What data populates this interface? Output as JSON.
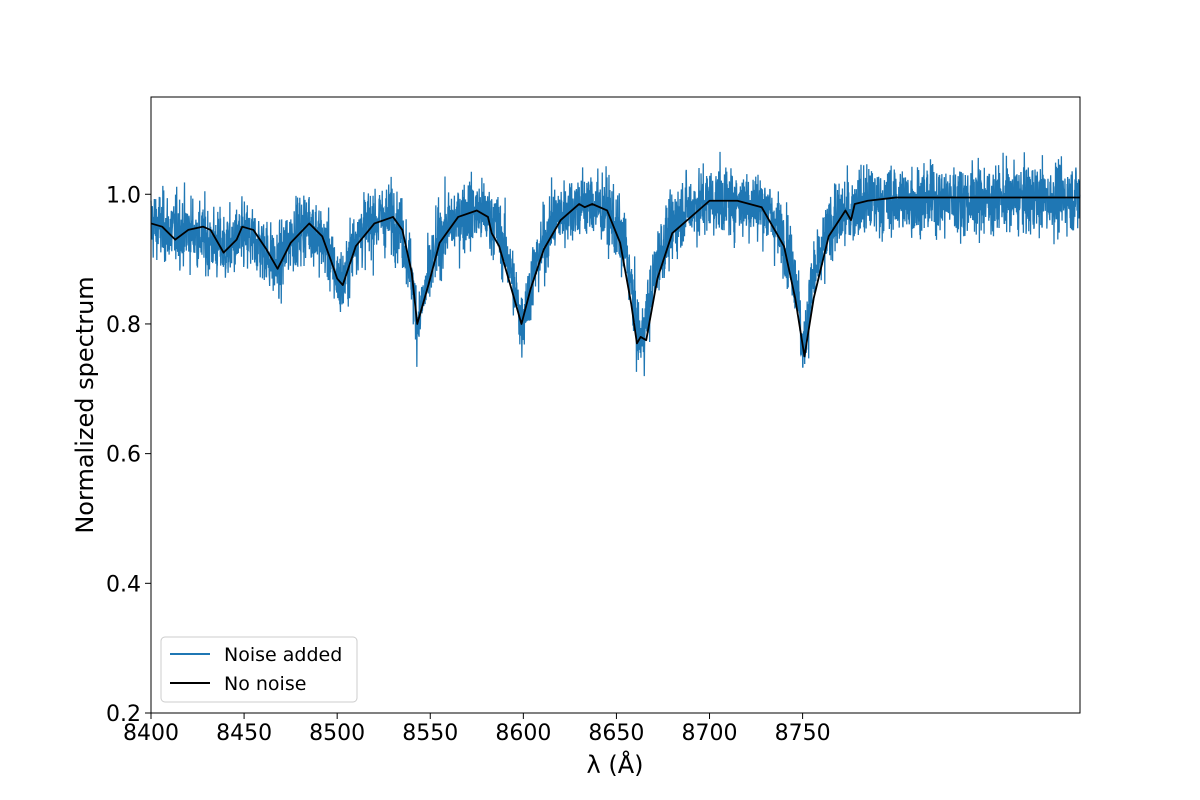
{
  "chart_data": {
    "type": "line",
    "title": "",
    "xlabel": "λ (Å)",
    "ylabel": "Normalized spectrum",
    "xlim": [
      8400,
      8899
    ],
    "ylim": [
      0.2,
      1.15
    ],
    "x_ticks": [
      8400,
      8450,
      8500,
      8550,
      8600,
      8650,
      8700,
      8750
    ],
    "y_ticks": [
      0.2,
      0.4,
      0.6,
      0.8,
      1.0
    ],
    "y_tick_labels": [
      "0.2",
      "0.4",
      "0.6",
      "0.8",
      "1.0"
    ],
    "grid": false,
    "legend_position": "lower-left",
    "series": [
      {
        "name": "Noise added",
        "color": "#1f77b4",
        "noise_sd": 0.045,
        "x": [
          8400,
          8410,
          8420,
          8430,
          8440,
          8450,
          8460,
          8468,
          8475,
          8485,
          8495,
          8500,
          8503,
          8510,
          8520,
          8530,
          8535,
          8540,
          8543,
          8546,
          8555,
          8565,
          8575,
          8585,
          8592,
          8599,
          8606,
          8615,
          8625,
          8635,
          8645,
          8655,
          8662,
          8665,
          8672,
          8685,
          8700,
          8715,
          8730,
          8740,
          8747,
          8750,
          8755,
          8765,
          8776,
          8780,
          8790,
          8899
        ],
        "y": [
          0.955,
          0.945,
          0.945,
          0.93,
          0.915,
          0.935,
          0.92,
          0.885,
          0.935,
          0.955,
          0.915,
          0.87,
          0.86,
          0.935,
          0.96,
          0.965,
          0.94,
          0.875,
          0.8,
          0.835,
          0.935,
          0.965,
          0.975,
          0.955,
          0.9,
          0.8,
          0.885,
          0.955,
          0.98,
          0.985,
          0.975,
          0.915,
          0.775,
          0.79,
          0.9,
          0.975,
          0.99,
          0.99,
          0.98,
          0.935,
          0.865,
          0.75,
          0.86,
          0.955,
          0.975,
          0.985,
          0.99,
          0.995
        ]
      },
      {
        "name": "No noise",
        "color": "#000000",
        "x": [
          8400,
          8406,
          8413,
          8420,
          8428,
          8432,
          8439,
          8446,
          8449,
          8455,
          8462,
          8468,
          8475,
          8485,
          8492,
          8497,
          8500,
          8503,
          8510,
          8520,
          8530,
          8535,
          8540,
          8543,
          8546,
          8549,
          8555,
          8565,
          8575,
          8581,
          8583,
          8587,
          8594,
          8599,
          8604,
          8611,
          8620,
          8630,
          8633,
          8637,
          8645,
          8652,
          8658,
          8661,
          8663,
          8666,
          8672,
          8680,
          8700,
          8715,
          8728,
          8733,
          8740,
          8746,
          8751,
          8756,
          8764,
          8773,
          8776,
          8778,
          8785,
          8800,
          8899
        ],
        "y": [
          0.955,
          0.95,
          0.93,
          0.945,
          0.95,
          0.945,
          0.91,
          0.93,
          0.95,
          0.945,
          0.915,
          0.885,
          0.925,
          0.955,
          0.935,
          0.895,
          0.87,
          0.86,
          0.92,
          0.955,
          0.965,
          0.945,
          0.88,
          0.8,
          0.83,
          0.86,
          0.925,
          0.965,
          0.975,
          0.965,
          0.94,
          0.92,
          0.85,
          0.8,
          0.855,
          0.915,
          0.96,
          0.985,
          0.98,
          0.985,
          0.975,
          0.925,
          0.83,
          0.77,
          0.78,
          0.775,
          0.87,
          0.94,
          0.99,
          0.99,
          0.98,
          0.955,
          0.92,
          0.84,
          0.75,
          0.84,
          0.935,
          0.975,
          0.96,
          0.985,
          0.99,
          0.995,
          0.995
        ]
      }
    ]
  }
}
